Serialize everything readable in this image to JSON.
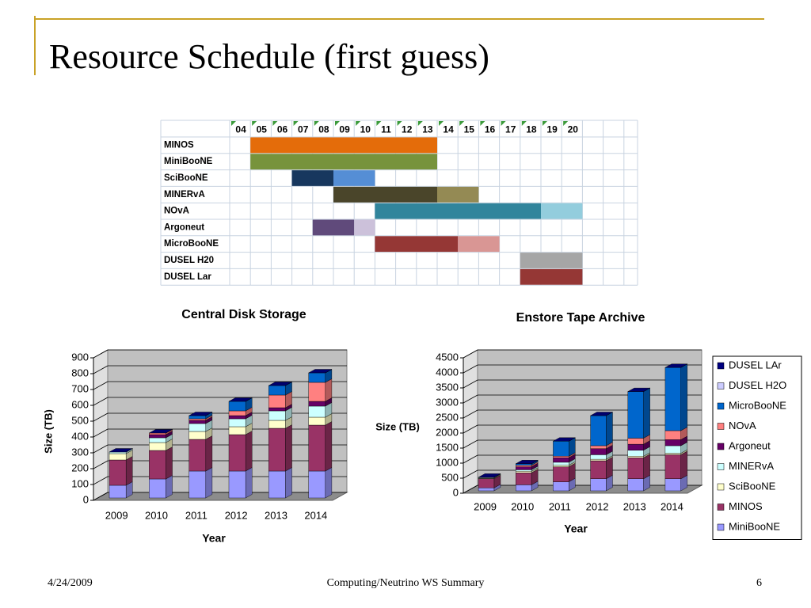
{
  "title": "Resource Schedule (first guess)",
  "schedule": {
    "years": [
      "04",
      "05",
      "06",
      "07",
      "08",
      "09",
      "10",
      "11",
      "12",
      "13",
      "14",
      "15",
      "16",
      "17",
      "18",
      "19",
      "20"
    ],
    "rows": [
      {
        "name": "MINOS",
        "bars": [
          {
            "start": "05",
            "end": "13",
            "color": "#e46c0a"
          }
        ]
      },
      {
        "name": "MiniBooNE",
        "bars": [
          {
            "start": "05",
            "end": "13",
            "color": "#77933c"
          }
        ]
      },
      {
        "name": "SciBooNE",
        "bars": [
          {
            "start": "07",
            "end": "08",
            "color": "#17375e"
          },
          {
            "start": "09",
            "end": "10",
            "color": "#558ed5"
          }
        ]
      },
      {
        "name": "MINERvA",
        "bars": [
          {
            "start": "09",
            "end": "13",
            "color": "#4a452a"
          },
          {
            "start": "14",
            "end": "15",
            "color": "#948a54"
          }
        ]
      },
      {
        "name": "NOvA",
        "bars": [
          {
            "start": "11",
            "end": "18",
            "color": "#31859c"
          },
          {
            "start": "19",
            "end": "20",
            "color": "#93cddd"
          }
        ]
      },
      {
        "name": "Argoneut",
        "bars": [
          {
            "start": "08",
            "end": "09",
            "color": "#604a7b"
          },
          {
            "start": "10",
            "end": "10",
            "color": "#ccc1da"
          }
        ]
      },
      {
        "name": "MicroBooNE",
        "bars": [
          {
            "start": "11",
            "end": "14",
            "color": "#953735"
          },
          {
            "start": "15",
            "end": "16",
            "color": "#d99694"
          }
        ]
      },
      {
        "name": "DUSEL H20",
        "bars": [
          {
            "start": "18",
            "end": "20",
            "color": "#a6a6a6"
          }
        ]
      },
      {
        "name": "DUSEL Lar",
        "bars": [
          {
            "start": "18",
            "end": "20",
            "color": "#953735"
          }
        ]
      }
    ]
  },
  "chart_data": [
    {
      "type": "stacked-bar-3d",
      "title": "Central Disk Storage",
      "x_label": "Year",
      "y_label": "Size (TB)",
      "categories": [
        "2009",
        "2010",
        "2011",
        "2012",
        "2013",
        "2014"
      ],
      "ylim": [
        0,
        900
      ],
      "yticks": [
        0,
        100,
        200,
        300,
        400,
        500,
        600,
        700,
        800,
        900
      ],
      "grid": true,
      "legend": false,
      "series": [
        {
          "name": "MiniBooNE",
          "color": "#9999ff",
          "values": [
            80,
            120,
            170,
            170,
            170,
            170
          ]
        },
        {
          "name": "MINOS",
          "color": "#993366",
          "values": [
            160,
            180,
            200,
            230,
            270,
            290
          ]
        },
        {
          "name": "SciBooNE",
          "color": "#ffffcc",
          "values": [
            40,
            50,
            50,
            50,
            50,
            50
          ]
        },
        {
          "name": "MINERvA",
          "color": "#ccffff",
          "values": [
            10,
            30,
            50,
            50,
            60,
            70
          ]
        },
        {
          "name": "Argoneut",
          "color": "#660066",
          "values": [
            0,
            20,
            20,
            20,
            20,
            30
          ]
        },
        {
          "name": "NOvA",
          "color": "#ff8080",
          "values": [
            0,
            10,
            10,
            30,
            80,
            120
          ]
        },
        {
          "name": "MicroBooNE",
          "color": "#0066cc",
          "values": [
            0,
            0,
            20,
            60,
            60,
            60
          ]
        },
        {
          "name": "DUSEL H2O",
          "color": "#ccccff",
          "values": [
            0,
            0,
            0,
            0,
            0,
            0
          ]
        },
        {
          "name": "DUSEL LAr",
          "color": "#000080",
          "values": [
            0,
            0,
            0,
            0,
            0,
            0
          ]
        }
      ]
    },
    {
      "type": "stacked-bar-3d",
      "title": "Enstore Tape Archive",
      "x_label": "Year",
      "y_label": "Size (TB)",
      "categories": [
        "2009",
        "2010",
        "2011",
        "2012",
        "2013",
        "2014"
      ],
      "ylim": [
        0,
        4500
      ],
      "yticks": [
        0,
        500,
        1000,
        1500,
        2000,
        2500,
        3000,
        3500,
        4000,
        4500
      ],
      "grid": true,
      "legend": "right",
      "series": [
        {
          "name": "MiniBooNE",
          "color": "#9999ff",
          "values": [
            100,
            200,
            300,
            400,
            400,
            400
          ]
        },
        {
          "name": "MINOS",
          "color": "#993366",
          "values": [
            300,
            400,
            500,
            600,
            700,
            800
          ]
        },
        {
          "name": "SciBooNE",
          "color": "#ffffcc",
          "values": [
            20,
            50,
            50,
            50,
            50,
            50
          ]
        },
        {
          "name": "MINERvA",
          "color": "#ccffff",
          "values": [
            20,
            50,
            100,
            150,
            200,
            250
          ]
        },
        {
          "name": "Argoneut",
          "color": "#660066",
          "values": [
            10,
            100,
            150,
            200,
            200,
            200
          ]
        },
        {
          "name": "NOvA",
          "color": "#ff8080",
          "values": [
            0,
            50,
            50,
            100,
            200,
            300
          ]
        },
        {
          "name": "MicroBooNE",
          "color": "#0066cc",
          "values": [
            0,
            50,
            500,
            1000,
            1550,
            2100
          ]
        },
        {
          "name": "DUSEL H2O",
          "color": "#ccccff",
          "values": [
            0,
            0,
            0,
            0,
            0,
            0
          ]
        },
        {
          "name": "DUSEL LAr",
          "color": "#000080",
          "values": [
            0,
            0,
            0,
            0,
            0,
            0
          ]
        }
      ]
    }
  ],
  "footer": {
    "date": "4/24/2009",
    "center": "Computing/Neutrino WS Summary",
    "page": "6"
  }
}
